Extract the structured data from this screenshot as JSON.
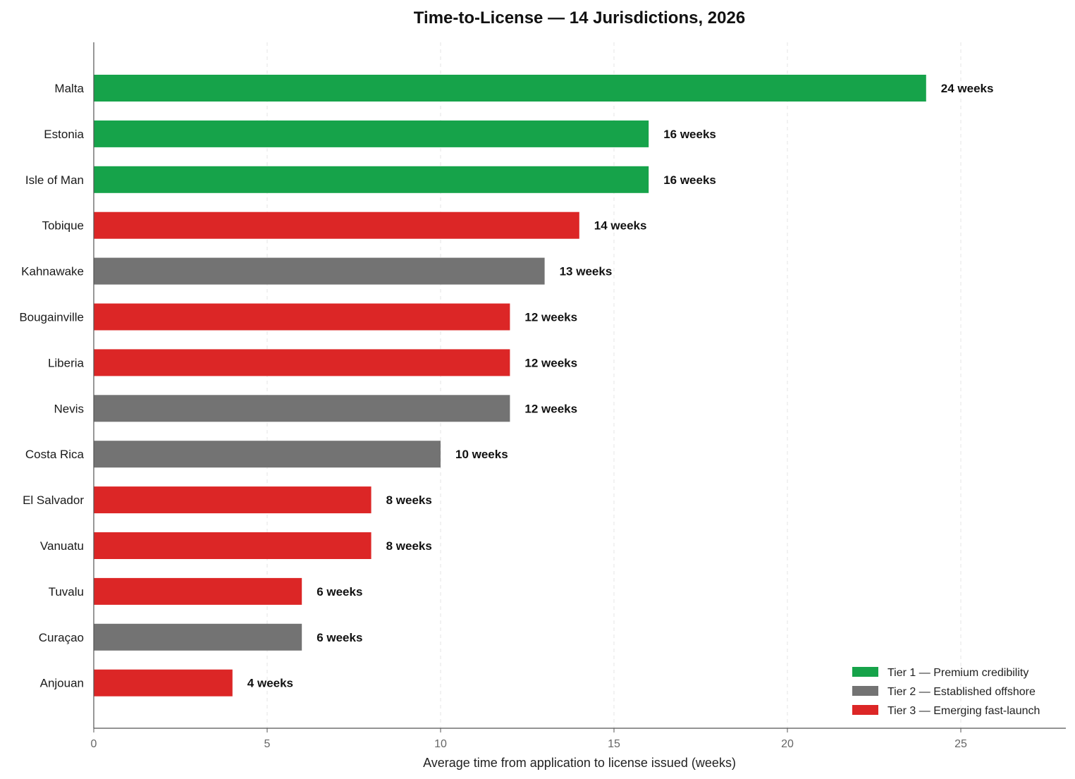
{
  "chart_data": {
    "type": "bar",
    "orientation": "horizontal",
    "title": "Time-to-License — 14 Jurisdictions, 2026",
    "xlabel": "Average time from application to license issued (weeks)",
    "ylabel": "",
    "xlim": [
      0,
      28
    ],
    "xticks": [
      0,
      5,
      10,
      15,
      20,
      25
    ],
    "grid": "vertical dashed",
    "legend_position": "bottom-right",
    "value_suffix": " weeks",
    "categories": [
      "Malta",
      "Estonia",
      "Isle of Man",
      "Tobique",
      "Kahnawake",
      "Bougainville",
      "Liberia",
      "Nevis",
      "Costa Rica",
      "El Salvador",
      "Vanuatu",
      "Tuvalu",
      "Curaçao",
      "Anjouan"
    ],
    "values": [
      24,
      16,
      16,
      14,
      13,
      12,
      12,
      12,
      10,
      8,
      8,
      6,
      6,
      4
    ],
    "tiers": [
      1,
      1,
      1,
      3,
      2,
      3,
      3,
      2,
      2,
      3,
      3,
      3,
      2,
      3
    ],
    "data_labels": [
      "24 weeks",
      "16 weeks",
      "16 weeks",
      "14 weeks",
      "13 weeks",
      "12 weeks",
      "12 weeks",
      "12 weeks",
      "10 weeks",
      "8 weeks",
      "8 weeks",
      "6 weeks",
      "6 weeks",
      "4 weeks"
    ],
    "legend": [
      {
        "tier": 1,
        "label": "Tier 1 — Premium credibility",
        "color": "#16a34a"
      },
      {
        "tier": 2,
        "label": "Tier 2 — Established offshore",
        "color": "#737373"
      },
      {
        "tier": 3,
        "label": "Tier 3 — Emerging fast-launch",
        "color": "#dc2626"
      }
    ]
  }
}
